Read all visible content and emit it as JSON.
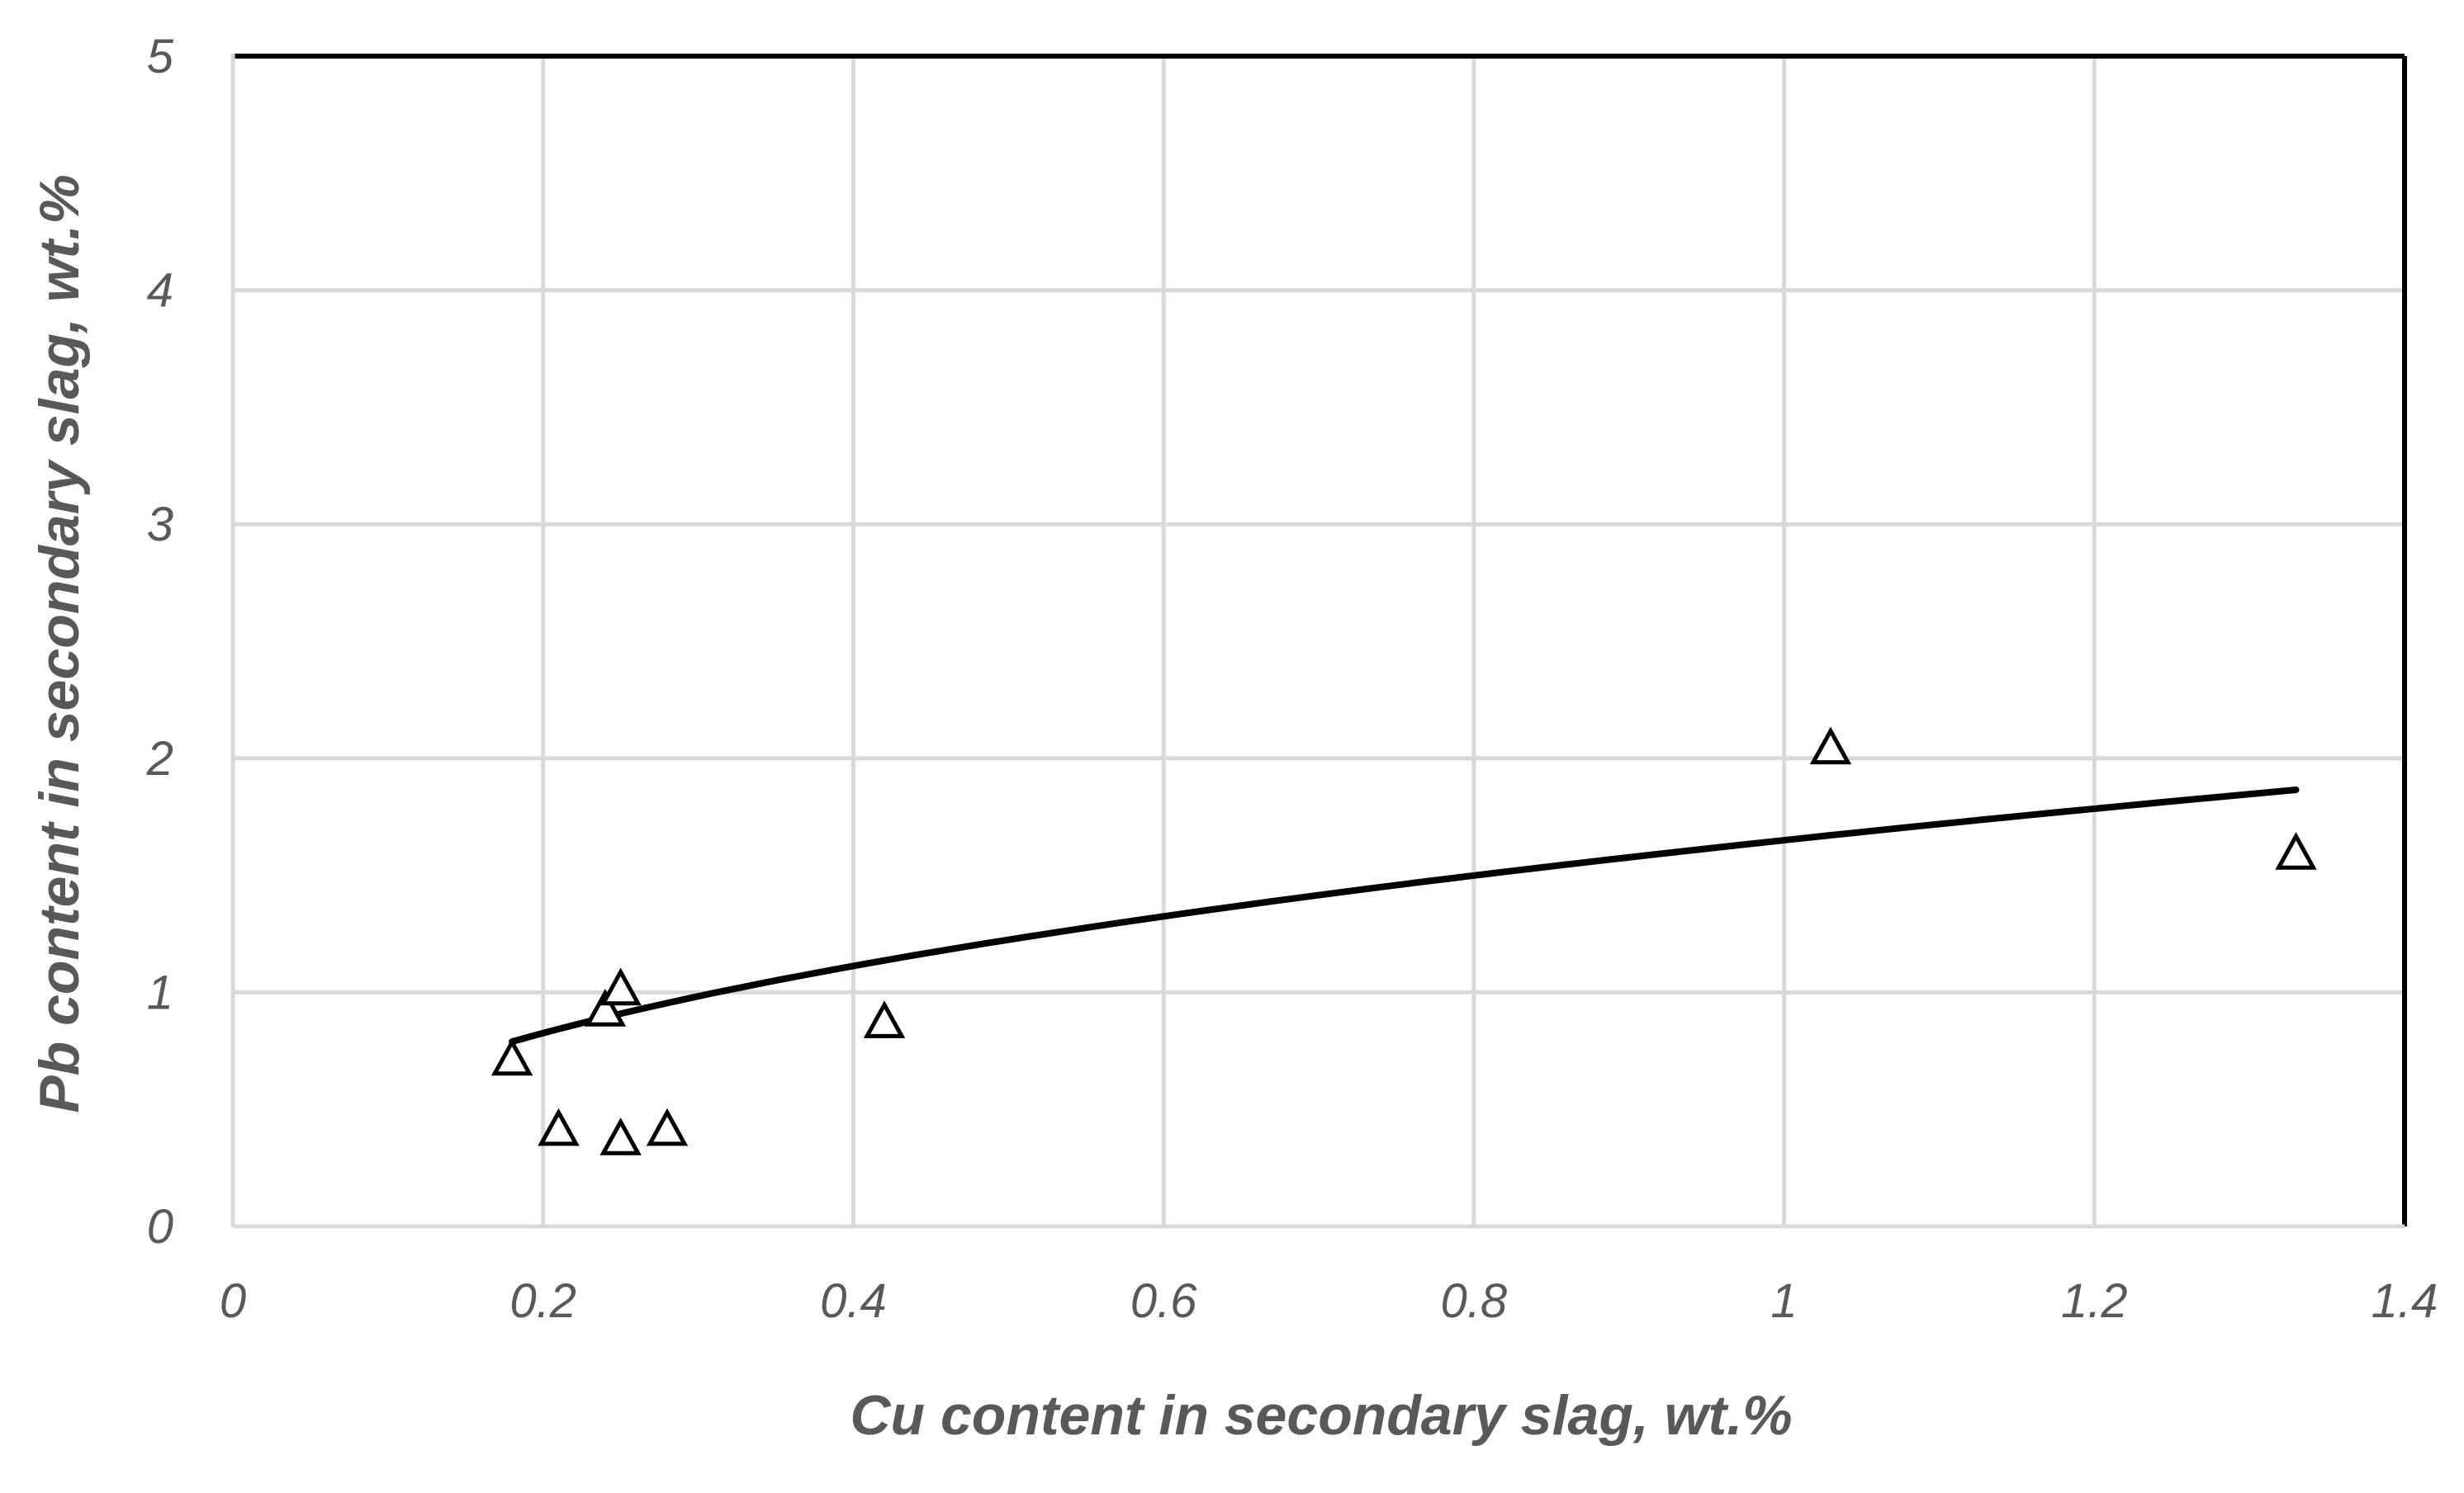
{
  "chart_data": {
    "type": "scatter",
    "title": "",
    "xlabel": "Cu content in secondary slag, wt.%",
    "ylabel": "Pb content in secondary slag, wt.%",
    "xlim": [
      0,
      1.4
    ],
    "ylim": [
      0,
      5
    ],
    "x_ticks": [
      0,
      0.2,
      0.4,
      0.6,
      0.8,
      1,
      1.2,
      1.4
    ],
    "x_tick_labels": [
      "0",
      "0.2",
      "0.4",
      "0.6",
      "0.8",
      "1",
      "1.2",
      "1.4"
    ],
    "y_ticks": [
      0,
      1,
      2,
      3,
      4,
      5
    ],
    "y_tick_labels": [
      "0",
      "1",
      "2",
      "3",
      "4",
      "5"
    ],
    "grid": true,
    "legend": "none",
    "marker": "open-triangle",
    "series": [
      {
        "points": [
          {
            "x": 0.18,
            "y": 0.72
          },
          {
            "x": 0.21,
            "y": 0.42
          },
          {
            "x": 0.24,
            "y": 0.93
          },
          {
            "x": 0.25,
            "y": 1.02
          },
          {
            "x": 0.25,
            "y": 0.38
          },
          {
            "x": 0.28,
            "y": 0.42
          },
          {
            "x": 0.42,
            "y": 0.88
          },
          {
            "x": 1.03,
            "y": 2.05
          },
          {
            "x": 1.33,
            "y": 1.6
          }
        ]
      }
    ],
    "trendline": {
      "type": "power",
      "coefficient": 1.65,
      "exponent": 0.43,
      "x_range": [
        0.18,
        1.33
      ]
    },
    "colors": {
      "gridline": "#d9d9d9",
      "frame": "#000000",
      "marker": "#000000",
      "trendline": "#000000",
      "text": "#595959"
    }
  }
}
